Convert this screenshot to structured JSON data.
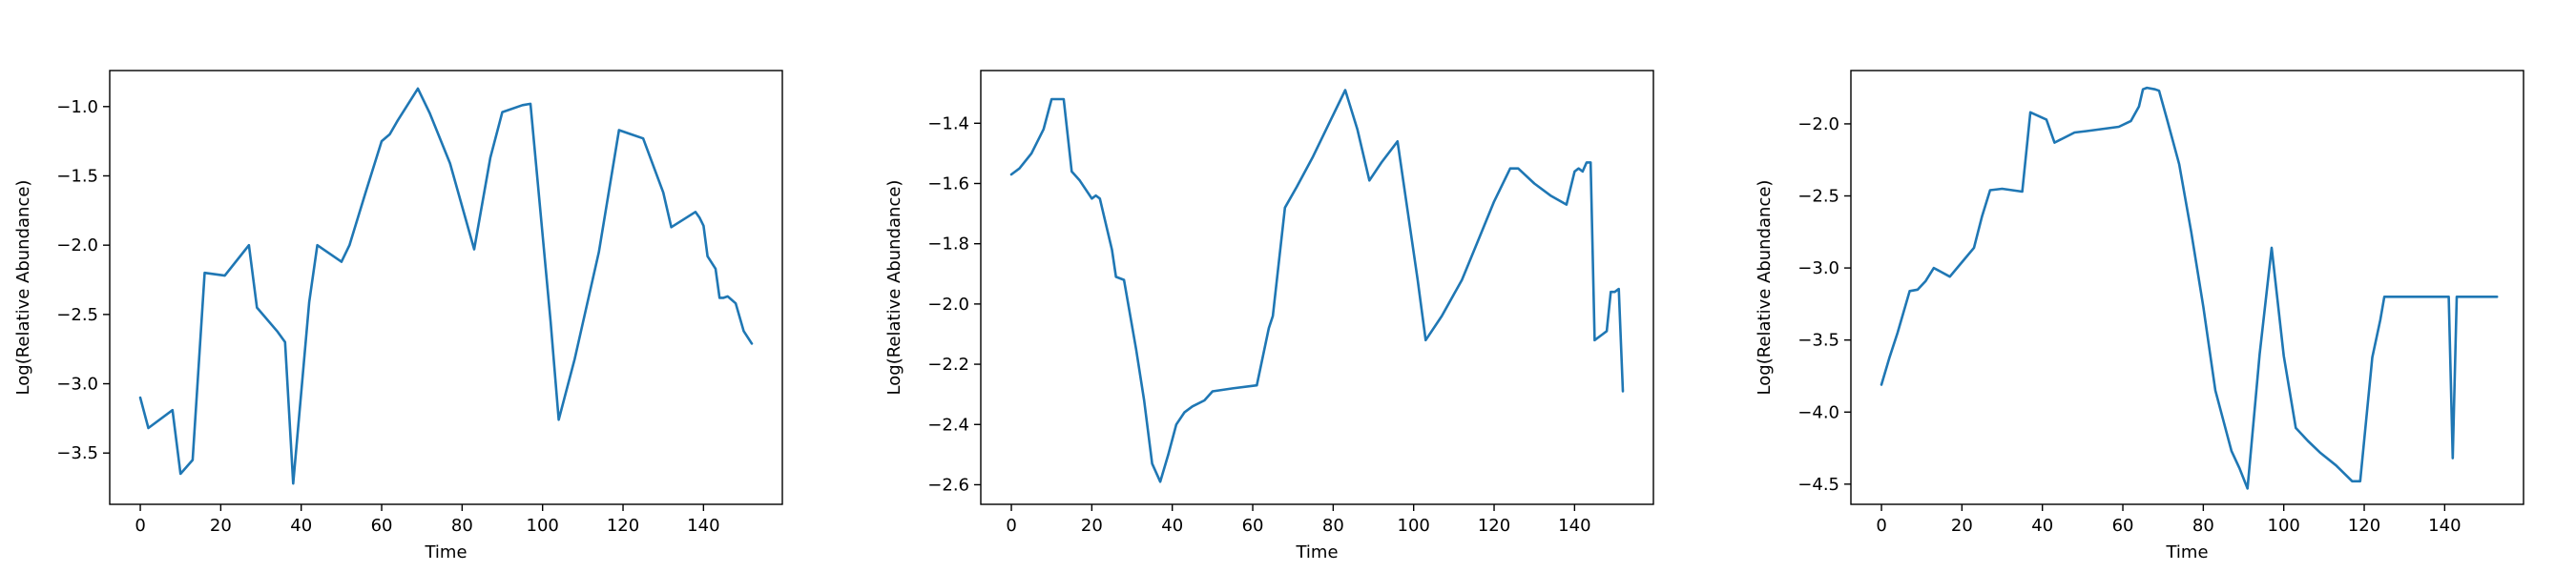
{
  "colors": {
    "series": "#1f77b4",
    "axes": "#000000",
    "background": "#ffffff"
  },
  "chart_data": [
    {
      "type": "line",
      "xlabel": "Time",
      "ylabel": "Log(Relative Abundance)",
      "xlim": [
        -7.6,
        159.6
      ],
      "ylim": [
        -3.87,
        -0.74
      ],
      "xticks": [
        0,
        20,
        40,
        60,
        80,
        100,
        120,
        140
      ],
      "yticks": [
        -3.5,
        -3.0,
        -2.5,
        -2.0,
        -1.5,
        -1.0
      ],
      "ytick_labels": [
        "−3.5",
        "−3.0",
        "−2.5",
        "−2.0",
        "−1.5",
        "−1.0"
      ],
      "grid": false,
      "x": [
        0,
        2,
        8,
        10,
        13,
        16,
        21,
        27,
        29,
        34,
        36,
        38,
        42,
        44,
        50,
        52,
        56,
        60,
        62,
        64,
        69,
        72,
        77,
        83,
        87,
        90,
        95,
        97,
        102,
        104,
        108,
        114,
        119,
        122,
        125,
        130,
        132,
        138,
        139,
        140,
        141,
        143,
        144,
        145,
        146,
        148,
        150,
        152
      ],
      "y": [
        -3.1,
        -3.32,
        -3.19,
        -3.65,
        -3.55,
        -2.2,
        -2.22,
        -2.0,
        -2.45,
        -2.62,
        -2.7,
        -3.72,
        -2.41,
        -2.0,
        -2.12,
        -2.0,
        -1.62,
        -1.25,
        -1.2,
        -1.1,
        -0.87,
        -1.05,
        -1.41,
        -2.03,
        -1.37,
        -1.04,
        -0.99,
        -0.98,
        -2.55,
        -3.26,
        -2.82,
        -2.05,
        -1.17,
        -1.2,
        -1.23,
        -1.62,
        -1.87,
        -1.76,
        -1.8,
        -1.86,
        -2.08,
        -2.17,
        -2.38,
        -2.38,
        -2.37,
        -2.42,
        -2.62,
        -2.71
      ]
    },
    {
      "type": "line",
      "xlabel": "Time",
      "ylabel": "Log(Relative Abundance)",
      "xlim": [
        -7.6,
        159.6
      ],
      "ylim": [
        -2.665,
        -1.225
      ],
      "xticks": [
        0,
        20,
        40,
        60,
        80,
        100,
        120,
        140
      ],
      "yticks": [
        -2.6,
        -2.4,
        -2.2,
        -2.0,
        -1.8,
        -1.6,
        -1.4
      ],
      "ytick_labels": [
        "−2.6",
        "−2.4",
        "−2.2",
        "−2.0",
        "−1.8",
        "−1.6",
        "−1.4"
      ],
      "grid": false,
      "x": [
        0,
        2,
        5,
        8,
        10,
        13,
        15,
        17,
        20,
        21,
        22,
        25,
        26,
        28,
        31,
        33,
        35,
        37,
        39,
        41,
        43,
        45,
        48,
        50,
        55,
        61,
        64,
        65,
        68,
        71,
        75,
        79,
        83,
        86,
        89,
        92,
        96,
        101,
        103,
        107,
        112,
        116,
        120,
        124,
        126,
        130,
        134,
        138,
        140,
        141,
        142,
        143,
        144,
        145,
        147,
        148,
        149,
        150,
        151,
        152
      ],
      "y": [
        -1.57,
        -1.55,
        -1.5,
        -1.42,
        -1.32,
        -1.32,
        -1.56,
        -1.59,
        -1.65,
        -1.64,
        -1.65,
        -1.82,
        -1.91,
        -1.92,
        -2.15,
        -2.32,
        -2.53,
        -2.59,
        -2.5,
        -2.4,
        -2.36,
        -2.34,
        -2.32,
        -2.29,
        -2.28,
        -2.27,
        -2.08,
        -2.04,
        -1.68,
        -1.61,
        -1.51,
        -1.4,
        -1.29,
        -1.42,
        -1.59,
        -1.53,
        -1.46,
        -1.92,
        -2.12,
        -2.04,
        -1.92,
        -1.79,
        -1.66,
        -1.55,
        -1.55,
        -1.6,
        -1.64,
        -1.67,
        -1.56,
        -1.55,
        -1.56,
        -1.53,
        -1.53,
        -2.12,
        -2.1,
        -2.09,
        -1.96,
        -1.96,
        -1.95,
        -2.29
      ]
    },
    {
      "type": "line",
      "xlabel": "Time",
      "ylabel": "Log(Relative Abundance)",
      "xlim": [
        -7.6,
        159.6
      ],
      "ylim": [
        -4.64,
        -1.63
      ],
      "xticks": [
        0,
        20,
        40,
        60,
        80,
        100,
        120,
        140
      ],
      "yticks": [
        -4.5,
        -4.0,
        -3.5,
        -3.0,
        -2.5,
        -2.0
      ],
      "ytick_labels": [
        "−4.5",
        "−4.0",
        "−3.5",
        "−3.0",
        "−2.5",
        "−2.0"
      ],
      "grid": false,
      "x": [
        0,
        2,
        4,
        7,
        9,
        11,
        13,
        15,
        17,
        20,
        23,
        25,
        27,
        30,
        35,
        37,
        41,
        43,
        48,
        51,
        59,
        62,
        64,
        65,
        66,
        68,
        69,
        71,
        74,
        77,
        80,
        83,
        87,
        89,
        91,
        94,
        97,
        100,
        103,
        106,
        109,
        113,
        117,
        119,
        122,
        124,
        125,
        131,
        137,
        141,
        142,
        143,
        146,
        150,
        153
      ],
      "y": [
        -3.81,
        -3.62,
        -3.45,
        -3.16,
        -3.15,
        -3.09,
        -3.0,
        -3.03,
        -3.06,
        -2.96,
        -2.86,
        -2.64,
        -2.46,
        -2.45,
        -2.47,
        -1.92,
        -1.97,
        -2.13,
        -2.06,
        -2.05,
        -2.02,
        -1.98,
        -1.88,
        -1.76,
        -1.75,
        -1.76,
        -1.77,
        -1.97,
        -2.28,
        -2.75,
        -3.27,
        -3.85,
        -4.27,
        -4.39,
        -4.53,
        -3.6,
        -2.86,
        -3.61,
        -4.11,
        -4.2,
        -4.28,
        -4.37,
        -4.48,
        -4.48,
        -3.62,
        -3.36,
        -3.2,
        -3.2,
        -3.2,
        -3.2,
        -4.32,
        -3.2,
        -3.2,
        -3.2,
        -3.2
      ]
    }
  ]
}
